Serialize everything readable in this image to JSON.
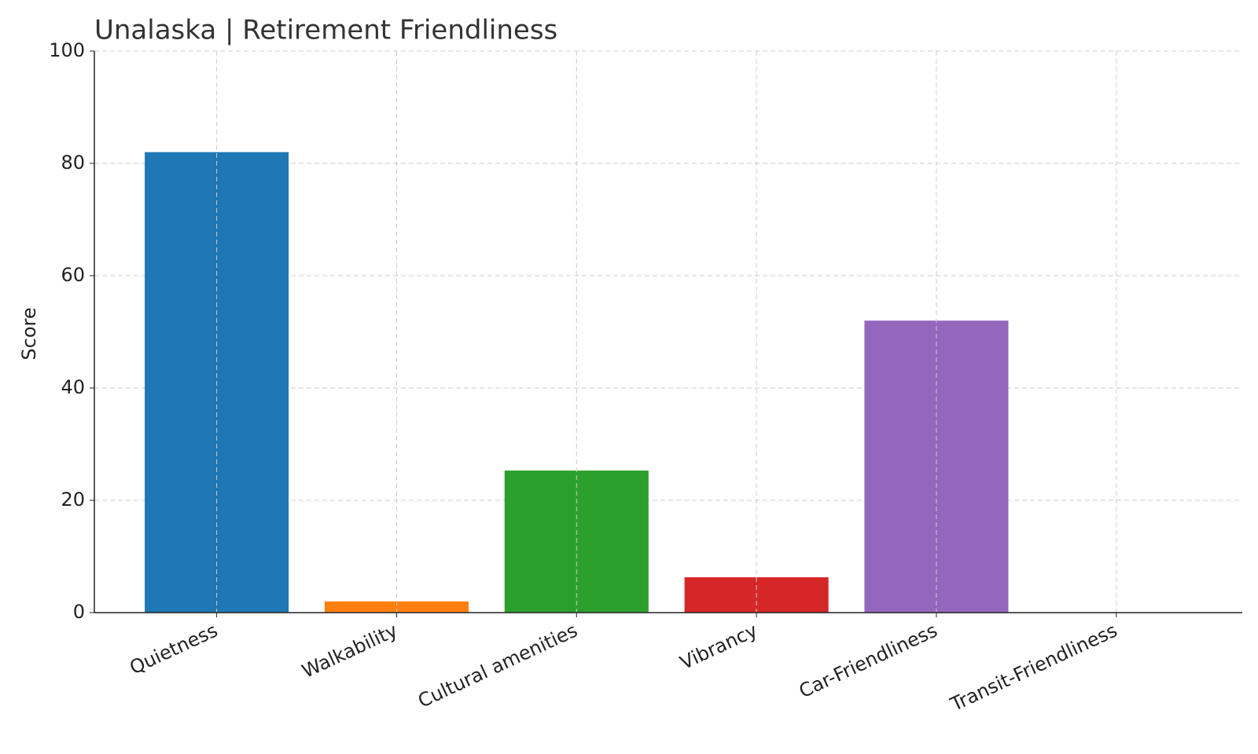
{
  "chart_data": {
    "type": "bar",
    "title": "Unalaska | Retirement Friendliness",
    "y_label": "Score",
    "categories": [
      "Quietness",
      "Walkability",
      "Cultural amenities",
      "Vibrancy",
      "Car-Friendliness",
      "Transit-Friendliness"
    ],
    "values": [
      82,
      2,
      25.3,
      6.3,
      52,
      0
    ],
    "colors": [
      "#1f77b4",
      "#ff7f0e",
      "#2ca02c",
      "#d62728",
      "#9467bd",
      "#8c564b"
    ],
    "ylim": [
      0,
      100
    ],
    "yticks": [
      0,
      20,
      40,
      60,
      80,
      100
    ],
    "grid": true
  }
}
